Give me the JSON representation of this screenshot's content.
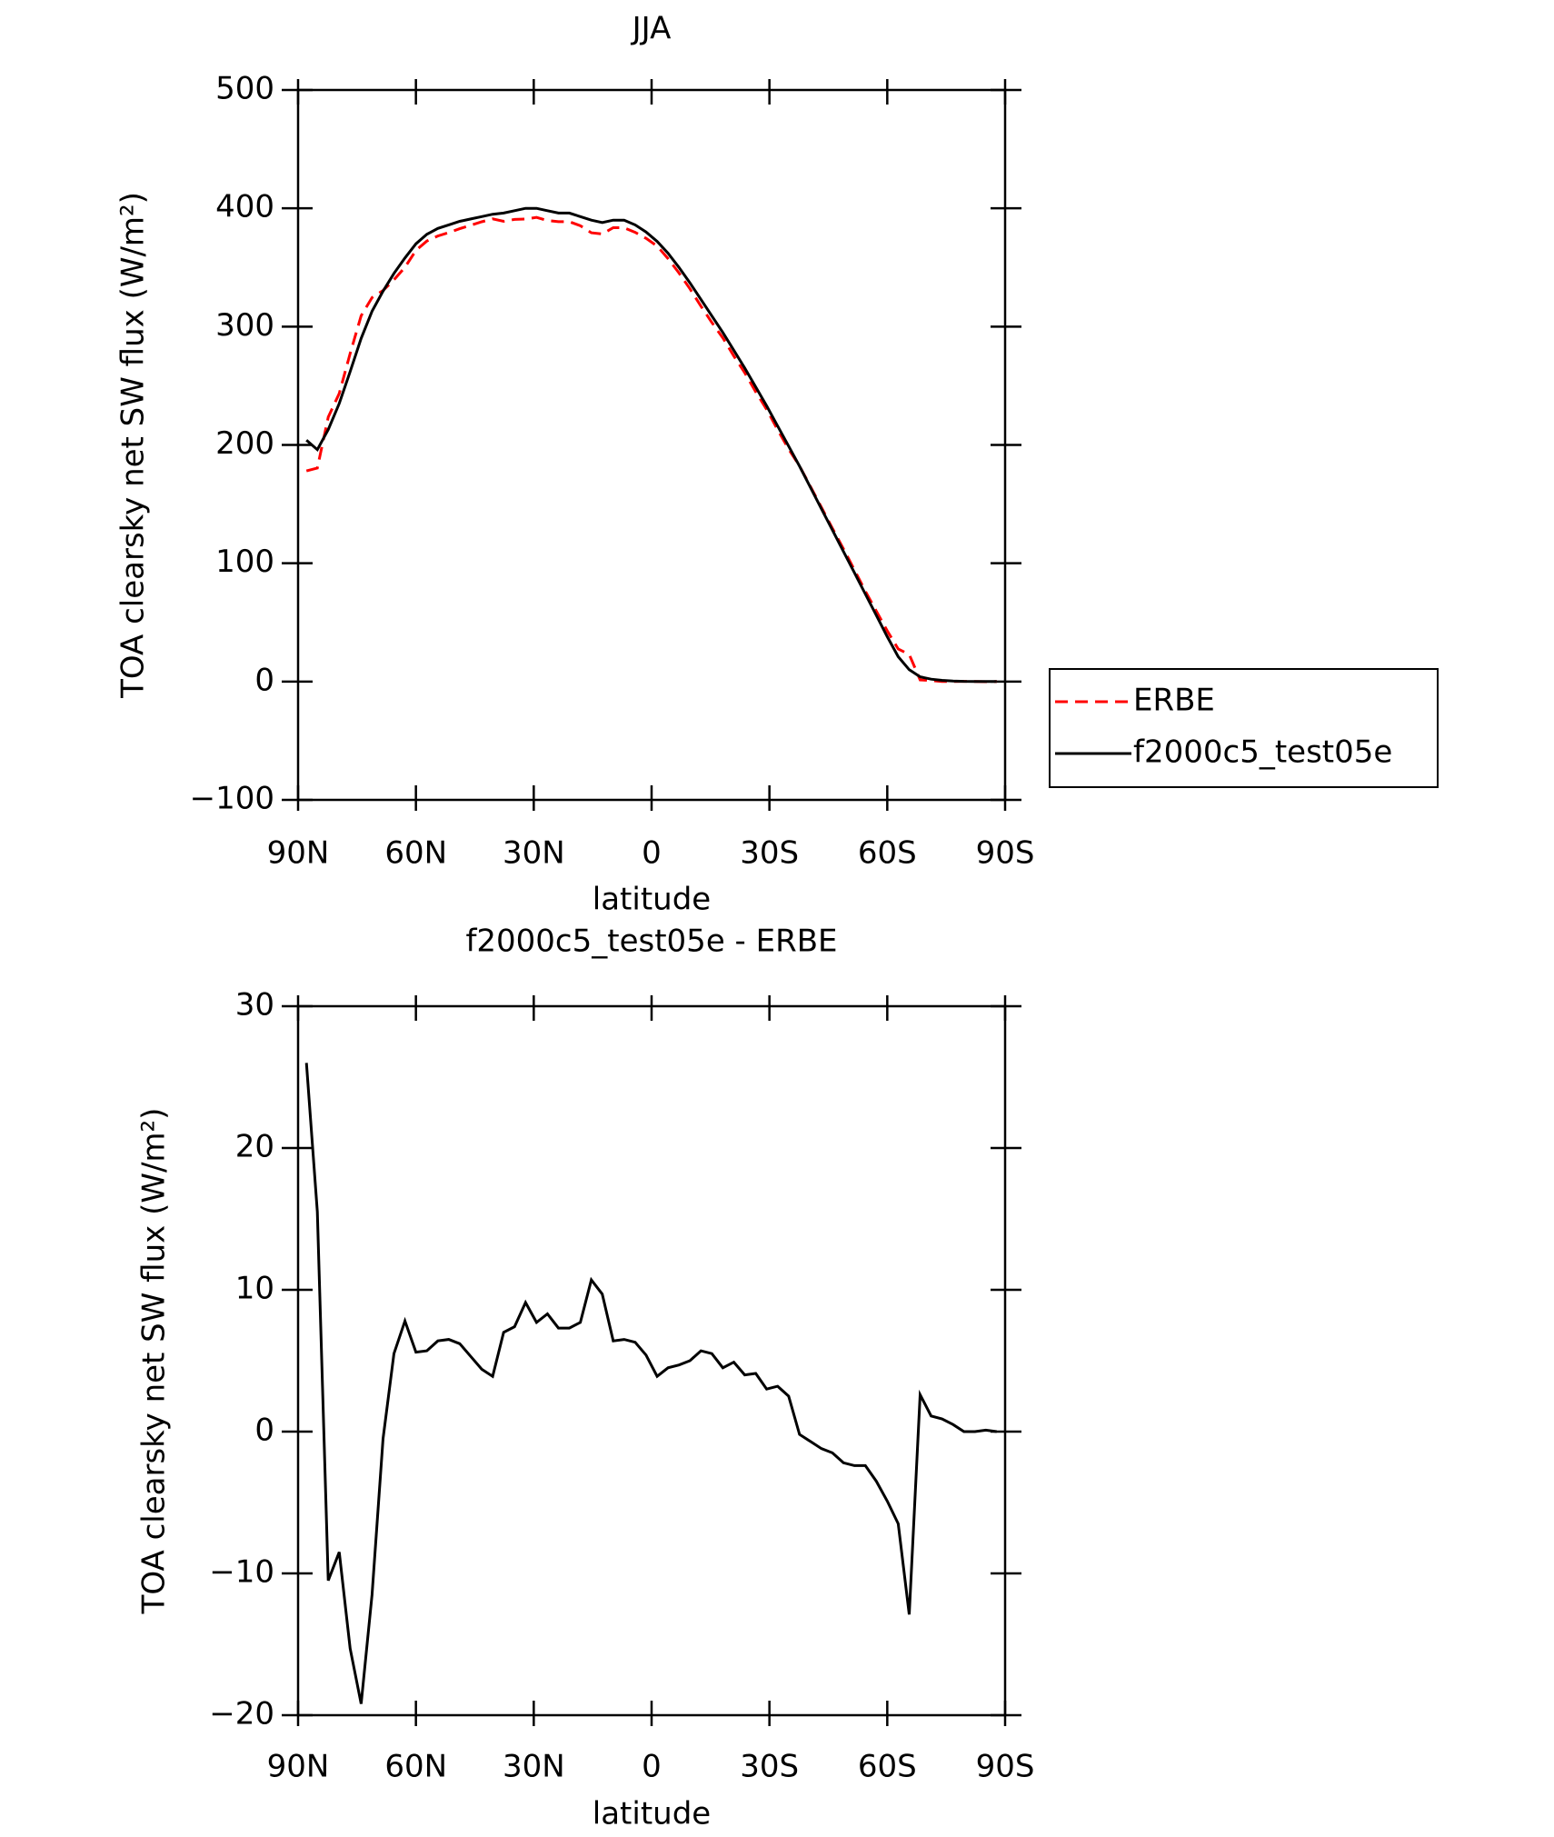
{
  "chart_data": [
    {
      "type": "line",
      "title": "JJA",
      "x": [
        87.86,
        85.1,
        82.31,
        79.53,
        76.74,
        73.95,
        71.16,
        68.37,
        65.58,
        62.79,
        60.0,
        57.21,
        54.42,
        51.63,
        48.84,
        46.04,
        43.25,
        40.46,
        37.67,
        34.88,
        32.09,
        29.3,
        26.51,
        23.72,
        20.93,
        18.14,
        15.35,
        12.56,
        9.77,
        6.98,
        4.19,
        1.4,
        -1.4,
        -4.19,
        -6.98,
        -9.77,
        -12.56,
        -15.35,
        -18.14,
        -20.93,
        -23.72,
        -26.51,
        -29.3,
        -32.09,
        -34.88,
        -37.67,
        -40.46,
        -43.25,
        -46.04,
        -48.84,
        -51.63,
        -54.42,
        -57.21,
        -60.0,
        -62.79,
        -65.58,
        -68.37,
        -71.16,
        -73.95,
        -76.74,
        -79.53,
        -82.31,
        -85.1,
        -87.86
      ],
      "series": [
        {
          "name": "ERBE",
          "color": "#ff0000",
          "dashed": true,
          "values": [
            178,
            180.5,
            223.5,
            243.5,
            277.3,
            309.2,
            324.5,
            330.5,
            339.5,
            350.2,
            364.4,
            372.3,
            376.6,
            379.5,
            382.8,
            385.7,
            388.6,
            391.1,
            389,
            390.6,
            390.9,
            392.3,
            389.7,
            388.7,
            388.7,
            385.3,
            379.3,
            378.3,
            383.6,
            383.5,
            379.7,
            374.6,
            368.1,
            357.5,
            345.3,
            332,
            317.3,
            303.5,
            290.5,
            275.1,
            261,
            244.9,
            230,
            212.8,
            196.5,
            182.2,
            164.7,
            147.2,
            129.5,
            112.2,
            94.4,
            76.4,
            59.5,
            42.9,
            27.5,
            22.9,
            1.4,
            0.9,
            0.1,
            0,
            0.2,
            0.1,
            -0.1,
            0
          ]
        },
        {
          "name": "f2000c5_test05e",
          "color": "#000000",
          "dashed": false,
          "values": [
            204,
            196,
            213,
            235,
            262,
            290,
            313,
            330,
            345,
            358,
            370,
            378,
            383,
            386,
            389,
            391,
            393,
            395,
            396,
            398,
            400,
            400,
            398,
            396,
            396,
            393,
            390,
            388,
            390,
            390,
            386,
            380,
            372,
            362,
            350,
            337,
            323,
            309,
            295,
            280,
            265,
            249,
            233,
            216,
            199,
            182,
            164,
            146,
            128,
            110,
            92,
            74,
            56,
            38,
            21,
            10,
            4,
            2,
            1,
            0.5,
            0.2,
            0.1,
            0,
            0
          ]
        }
      ],
      "xlabel": "latitude",
      "ylabel": "TOA clearsky net SW flux (W/m²)",
      "xlim": [
        90,
        -90
      ],
      "xticks": [
        {
          "value": 90,
          "label": "90N"
        },
        {
          "value": 60,
          "label": "60N"
        },
        {
          "value": 30,
          "label": "30N"
        },
        0,
        {
          "value": -30,
          "label": "30S"
        },
        {
          "value": -60,
          "label": "60S"
        },
        {
          "value": -90,
          "label": "90S"
        }
      ],
      "ylim": [
        -100,
        500
      ],
      "yticks": [
        {
          "value": -100,
          "label": "−100"
        },
        0,
        100,
        200,
        300,
        400,
        500
      ],
      "legend": "outside-right"
    },
    {
      "type": "line",
      "title": "f2000c5_test05e - ERBE",
      "x": [
        87.86,
        85.1,
        82.31,
        79.53,
        76.74,
        73.95,
        71.16,
        68.37,
        65.58,
        62.79,
        60.0,
        57.21,
        54.42,
        51.63,
        48.84,
        46.04,
        43.25,
        40.46,
        37.67,
        34.88,
        32.09,
        29.3,
        26.51,
        23.72,
        20.93,
        18.14,
        15.35,
        12.56,
        9.77,
        6.98,
        4.19,
        1.4,
        -1.4,
        -4.19,
        -6.98,
        -9.77,
        -12.56,
        -15.35,
        -18.14,
        -20.93,
        -23.72,
        -26.51,
        -29.3,
        -32.09,
        -34.88,
        -37.67,
        -40.46,
        -43.25,
        -46.04,
        -48.84,
        -51.63,
        -54.42,
        -57.21,
        -60.0,
        -62.79,
        -65.58,
        -68.37,
        -71.16,
        -73.95,
        -76.74,
        -79.53,
        -82.31,
        -85.1,
        -87.86
      ],
      "values": [
        26,
        15.5,
        -10.5,
        -8.5,
        -15.3,
        -19.2,
        -11.5,
        -0.5,
        5.5,
        7.8,
        5.6,
        5.7,
        6.4,
        6.5,
        6.2,
        5.3,
        4.4,
        3.9,
        7.0,
        7.4,
        9.1,
        7.7,
        8.3,
        7.3,
        7.3,
        7.7,
        10.7,
        9.7,
        6.4,
        6.5,
        6.3,
        5.4,
        3.9,
        4.5,
        4.7,
        5.0,
        5.7,
        5.5,
        4.5,
        4.9,
        4.0,
        4.1,
        3.0,
        3.2,
        2.5,
        -0.2,
        -0.7,
        -1.2,
        -1.5,
        -2.2,
        -2.4,
        -2.4,
        -3.5,
        -4.9,
        -6.5,
        -12.9,
        2.6,
        1.1,
        0.9,
        0.5,
        0.0,
        0.0,
        0.1,
        0.0
      ],
      "color": "#000000",
      "xlabel": "latitude",
      "ylabel": "TOA clearsky net SW flux (W/m²)",
      "xlim": [
        90,
        -90
      ],
      "xticks": [
        {
          "value": 90,
          "label": "90N"
        },
        {
          "value": 60,
          "label": "60N"
        },
        {
          "value": 30,
          "label": "30N"
        },
        0,
        {
          "value": -30,
          "label": "30S"
        },
        {
          "value": -60,
          "label": "60S"
        },
        {
          "value": -90,
          "label": "90S"
        }
      ],
      "ylim": [
        -20,
        30
      ],
      "yticks": [
        {
          "value": -20,
          "label": "−20"
        },
        {
          "value": -10,
          "label": "−10"
        },
        0,
        10,
        20,
        30
      ]
    }
  ]
}
